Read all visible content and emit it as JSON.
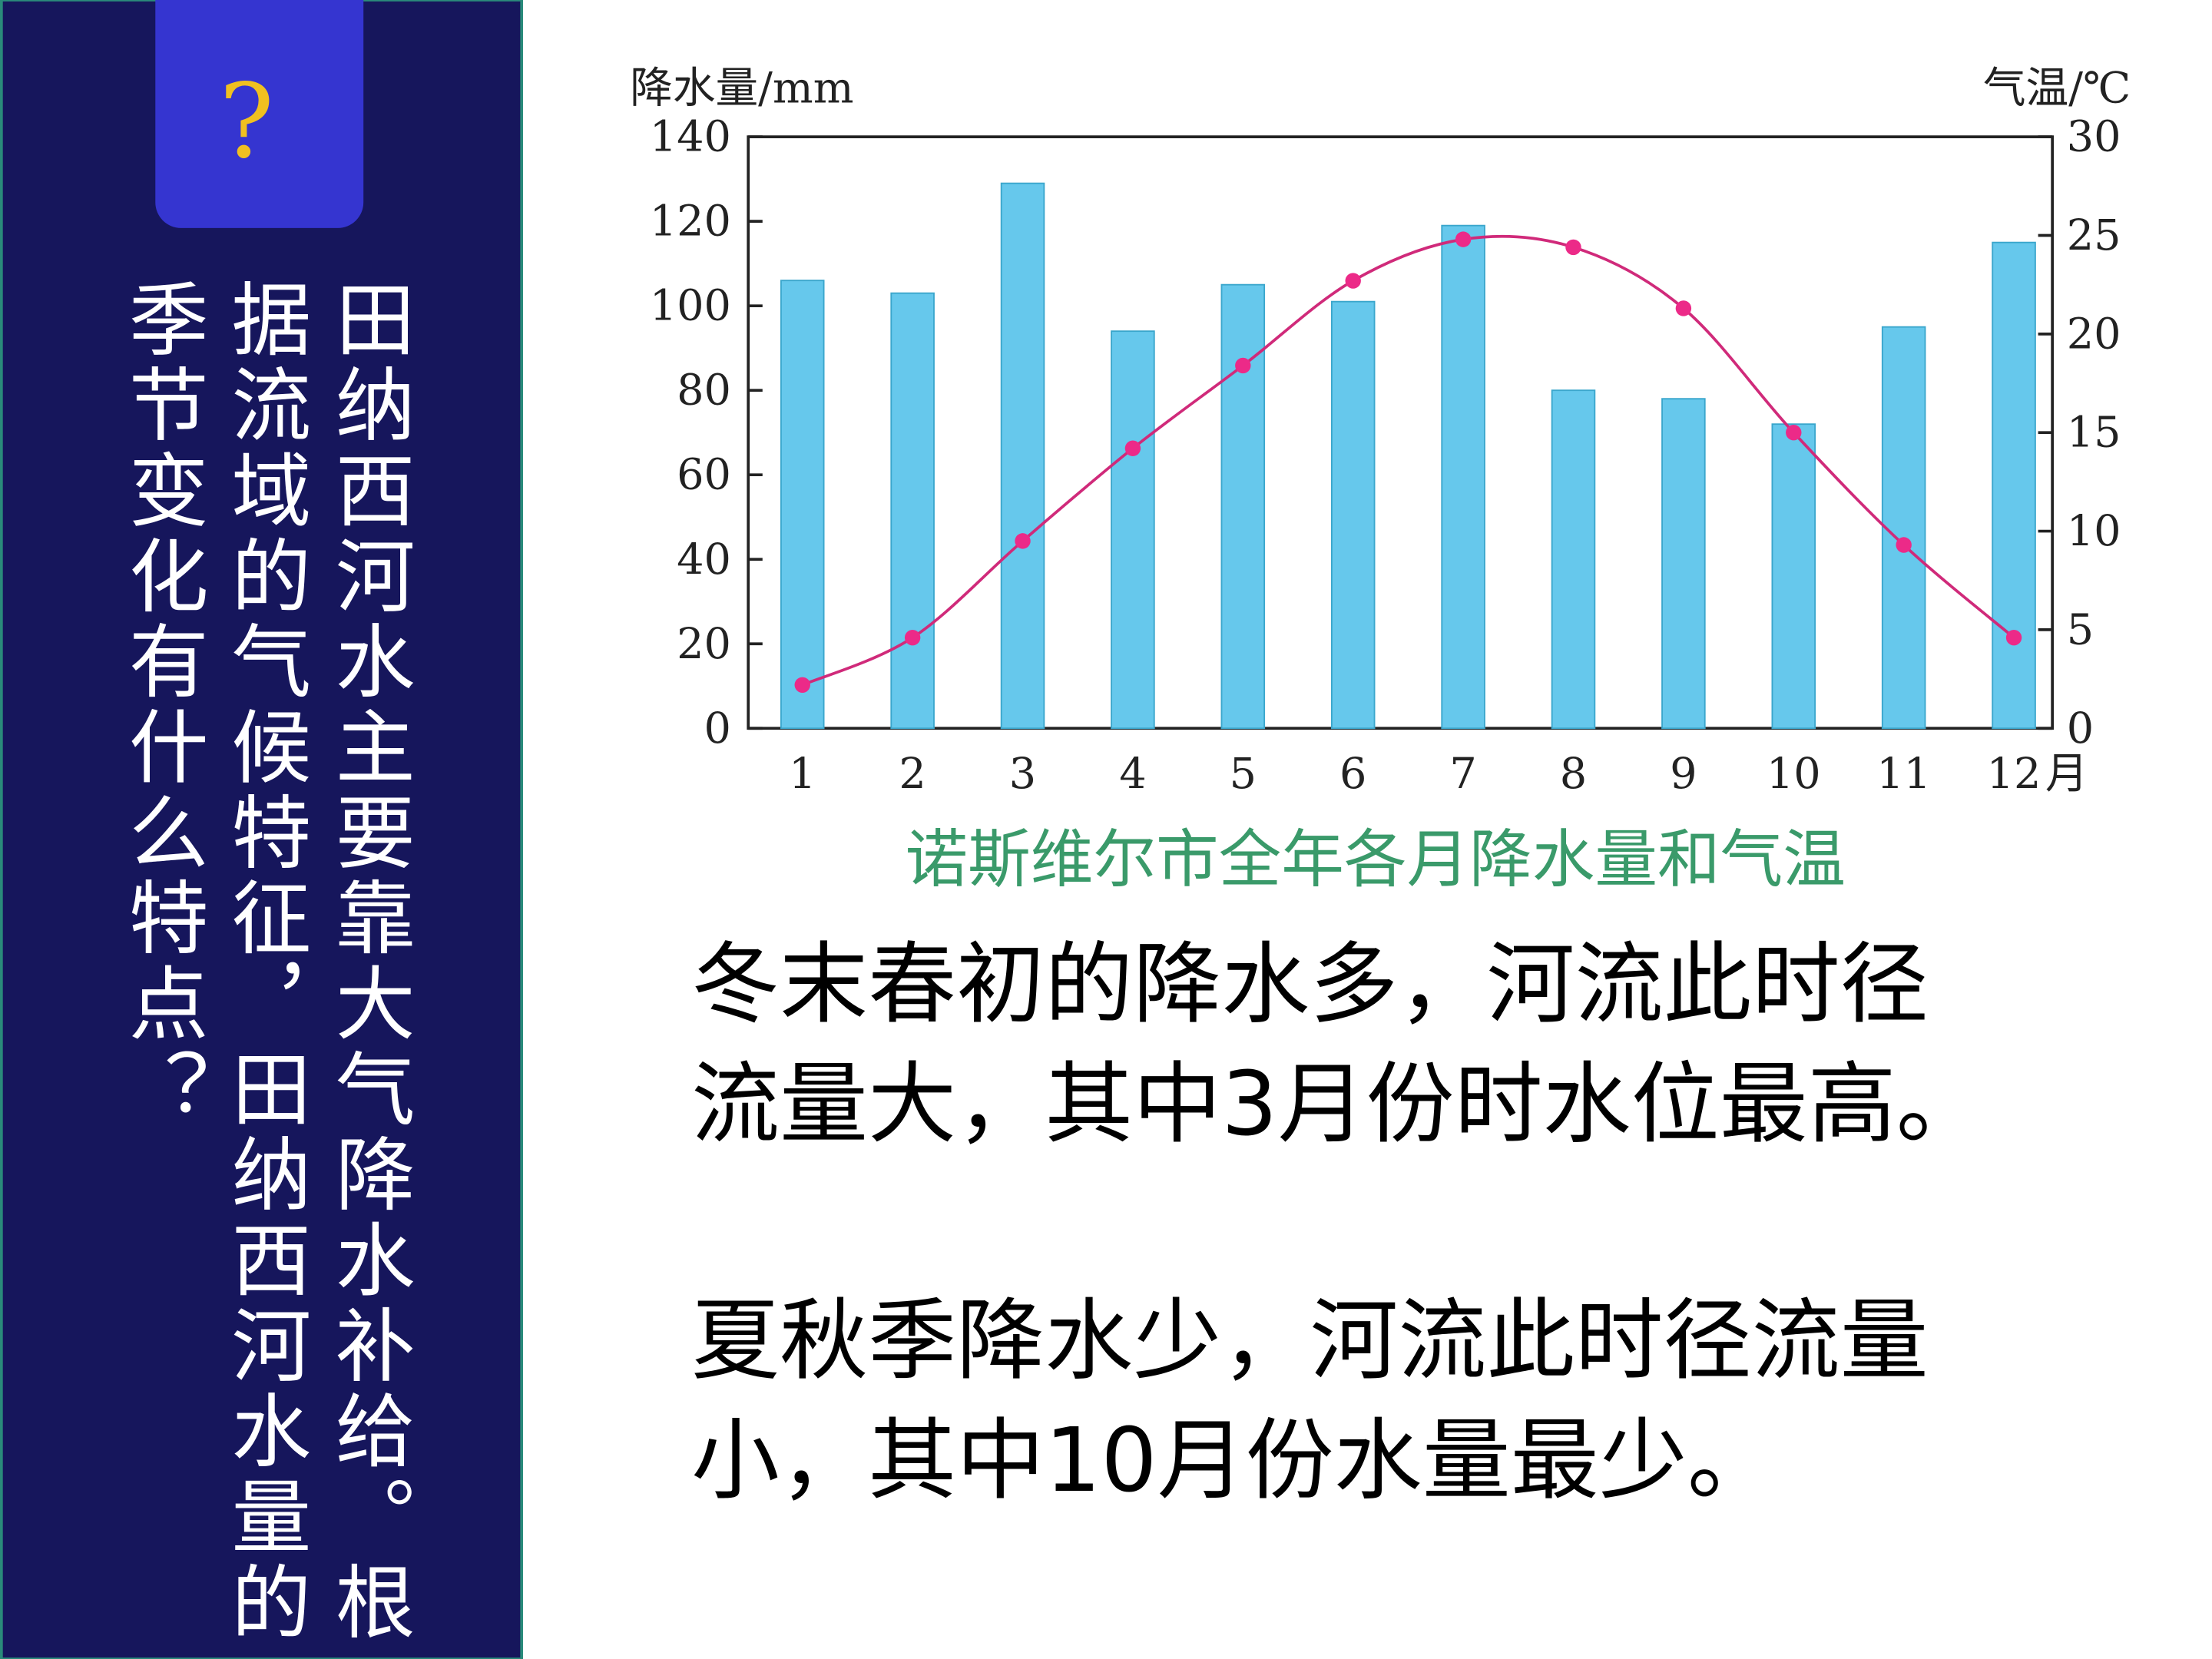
{
  "sidebar": {
    "button": "?",
    "question_lines": [
      "田纳西河水主要靠大气降水补给。根",
      "据流域的气候特征，田纳西河水量的",
      "季节变化有什么特点？"
    ]
  },
  "chart_data": {
    "type": "bar-line",
    "caption": "诺斯维尔市全年各月降水量和气温",
    "y_label": "降水量/mm",
    "y2_label": "气温/℃",
    "x_unit": "月",
    "categories": [
      "1",
      "2",
      "3",
      "4",
      "5",
      "6",
      "7",
      "8",
      "9",
      "10",
      "11",
      "12"
    ],
    "series": [
      {
        "name": "降水量",
        "type": "bar",
        "color": "#66c8ec",
        "values": [
          106,
          103,
          129,
          94,
          105,
          101,
          119,
          80,
          78,
          72,
          95,
          115
        ]
      },
      {
        "name": "气温",
        "type": "line",
        "axis": "y2",
        "color": "#d02a7a",
        "values": [
          2.2,
          4.6,
          9.5,
          14.2,
          18.4,
          22.7,
          24.8,
          24.4,
          21.3,
          15.0,
          9.3,
          4.6
        ]
      }
    ],
    "ylim": [
      0,
      140
    ],
    "yticks": [
      0,
      20,
      40,
      60,
      80,
      100,
      120,
      140
    ],
    "y2lim": [
      0,
      30
    ],
    "y2ticks": [
      0,
      5,
      10,
      15,
      20,
      25,
      30
    ]
  },
  "answer": {
    "paragraphs": [
      [
        "冬末春初的降水多，河流此时径",
        "流量大，其中3月份时水位最高。"
      ],
      [
        "夏秋季降水少，河流此时径流量",
        "小，其中10月份水量最少。"
      ]
    ]
  }
}
